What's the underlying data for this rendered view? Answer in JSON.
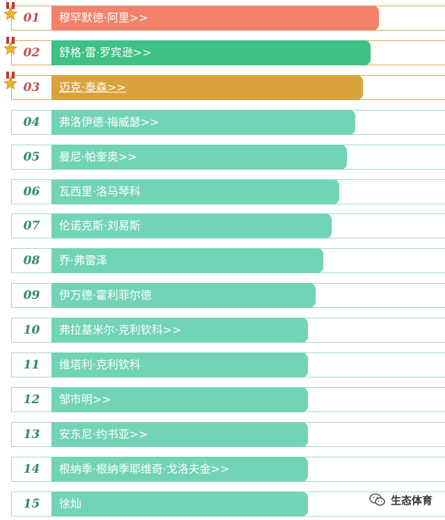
{
  "colors": {
    "first": "#f2826a",
    "second": "#3fc084",
    "third": "#d9a33c",
    "rest": "#72d4b6",
    "rank_top": "#c0504d",
    "rank_rest": "#2d8a6e"
  },
  "rows": [
    {
      "rank": "01",
      "name": "穆罕默德·阿里>>",
      "bar_percent": 83,
      "style": "first",
      "medal": true
    },
    {
      "rank": "02",
      "name": "舒格·雷·罗宾逊>>",
      "bar_percent": 81,
      "style": "second",
      "medal": true
    },
    {
      "rank": "03",
      "name": "迈克·泰森>>",
      "bar_percent": 79,
      "style": "third",
      "medal": true,
      "underline": true
    },
    {
      "rank": "04",
      "name": "弗洛伊德·梅威瑟>>",
      "bar_percent": 77,
      "style": "rest"
    },
    {
      "rank": "05",
      "name": "曼尼·帕奎奥>>",
      "bar_percent": 75,
      "style": "rest"
    },
    {
      "rank": "06",
      "name": "瓦西里·洛马琴科",
      "bar_percent": 73,
      "style": "rest"
    },
    {
      "rank": "07",
      "name": "伦诺克斯·刘易斯",
      "bar_percent": 71,
      "style": "rest"
    },
    {
      "rank": "08",
      "name": "乔·弗雷泽",
      "bar_percent": 69,
      "style": "rest"
    },
    {
      "rank": "09",
      "name": "伊万德·霍利菲尔德",
      "bar_percent": 67,
      "style": "rest"
    },
    {
      "rank": "10",
      "name": "弗拉基米尔·克利钦科>>",
      "bar_percent": 65,
      "style": "rest"
    },
    {
      "rank": "11",
      "name": "维塔利·克利钦科",
      "bar_percent": 65,
      "style": "rest"
    },
    {
      "rank": "12",
      "name": "邹市明>>",
      "bar_percent": 65,
      "style": "rest"
    },
    {
      "rank": "13",
      "name": "安东尼·约书亚>>",
      "bar_percent": 65,
      "style": "rest"
    },
    {
      "rank": "14",
      "name": "根纳季·根纳季耶维奇·戈洛夫金>>",
      "bar_percent": 65,
      "style": "rest"
    },
    {
      "rank": "15",
      "name": "徐灿",
      "bar_percent": 65,
      "style": "rest"
    }
  ],
  "watermark": {
    "text": "生态体育",
    "icon": "wechat-icon"
  }
}
